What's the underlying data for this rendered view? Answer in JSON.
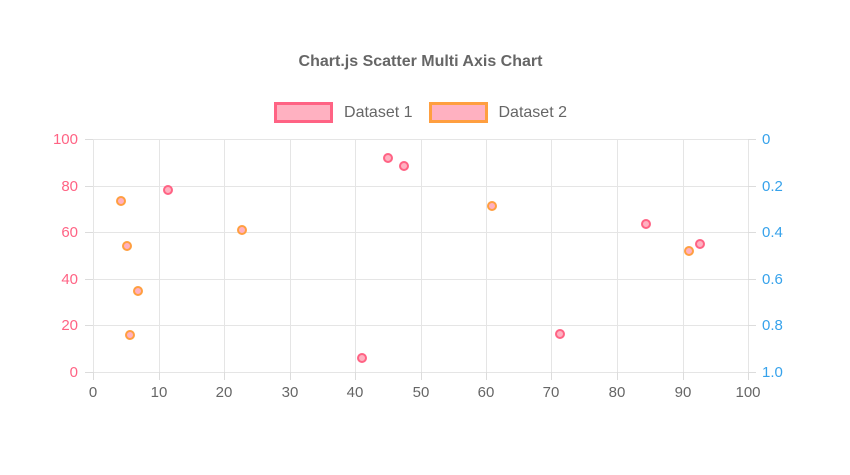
{
  "title": "Chart.js Scatter Multi Axis Chart",
  "colors": {
    "pink": "#FF6384",
    "pink_fill": "#FFB1C1",
    "orange": "#FF9F40",
    "blue": "#36A2EB",
    "axis_gray": "#666666",
    "grid": "#E5E5E5",
    "title": "#666666"
  },
  "legend": {
    "items": [
      {
        "label": "Dataset 1",
        "border": "#FF6384",
        "fill": "#FFB1C1"
      },
      {
        "label": "Dataset 2",
        "border": "#FF9F40",
        "fill": "#FFB1C1"
      }
    ]
  },
  "chart_data": {
    "type": "scatter",
    "title": "Chart.js Scatter Multi Axis Chart",
    "grid": true,
    "legend_position": "top",
    "x_axis": {
      "min": 0,
      "max": 100,
      "step": 10,
      "tick_labels": [
        "0",
        "10",
        "20",
        "30",
        "40",
        "50",
        "60",
        "70",
        "80",
        "90",
        "100"
      ],
      "color": "#666666"
    },
    "y_axis_left": {
      "min": 0,
      "max": 100,
      "step": 20,
      "tick_labels_top_to_bottom": [
        "100",
        "80",
        "60",
        "40",
        "20",
        "0"
      ],
      "color": "#FF6384",
      "reversed": false
    },
    "y_axis_right": {
      "min": 0,
      "max": 1,
      "step": 0.2,
      "tick_labels_top_to_bottom": [
        "0",
        "0.2",
        "0.4",
        "0.6",
        "0.8",
        "1.0"
      ],
      "color": "#36A2EB",
      "reversed": true
    },
    "series": [
      {
        "name": "Dataset 1",
        "axis": "left",
        "border_color": "#FF6384",
        "fill_color": "#FFB1C1",
        "points": [
          {
            "x": 11.5,
            "y": 78
          },
          {
            "x": 41,
            "y": 6
          },
          {
            "x": 45,
            "y": 92
          },
          {
            "x": 47.5,
            "y": 88.5
          },
          {
            "x": 71.3,
            "y": 16.5
          },
          {
            "x": 84.4,
            "y": 63.5
          },
          {
            "x": 92.7,
            "y": 55
          }
        ]
      },
      {
        "name": "Dataset 2",
        "axis": "right",
        "border_color": "#FF9F40",
        "fill_color": "#FFB1C1",
        "points": [
          {
            "x": 4.3,
            "y": 0.265
          },
          {
            "x": 5.2,
            "y": 0.46
          },
          {
            "x": 5.7,
            "y": 0.84
          },
          {
            "x": 6.8,
            "y": 0.65
          },
          {
            "x": 22.7,
            "y": 0.39
          },
          {
            "x": 60.9,
            "y": 0.286
          },
          {
            "x": 91,
            "y": 0.48
          }
        ]
      }
    ]
  }
}
